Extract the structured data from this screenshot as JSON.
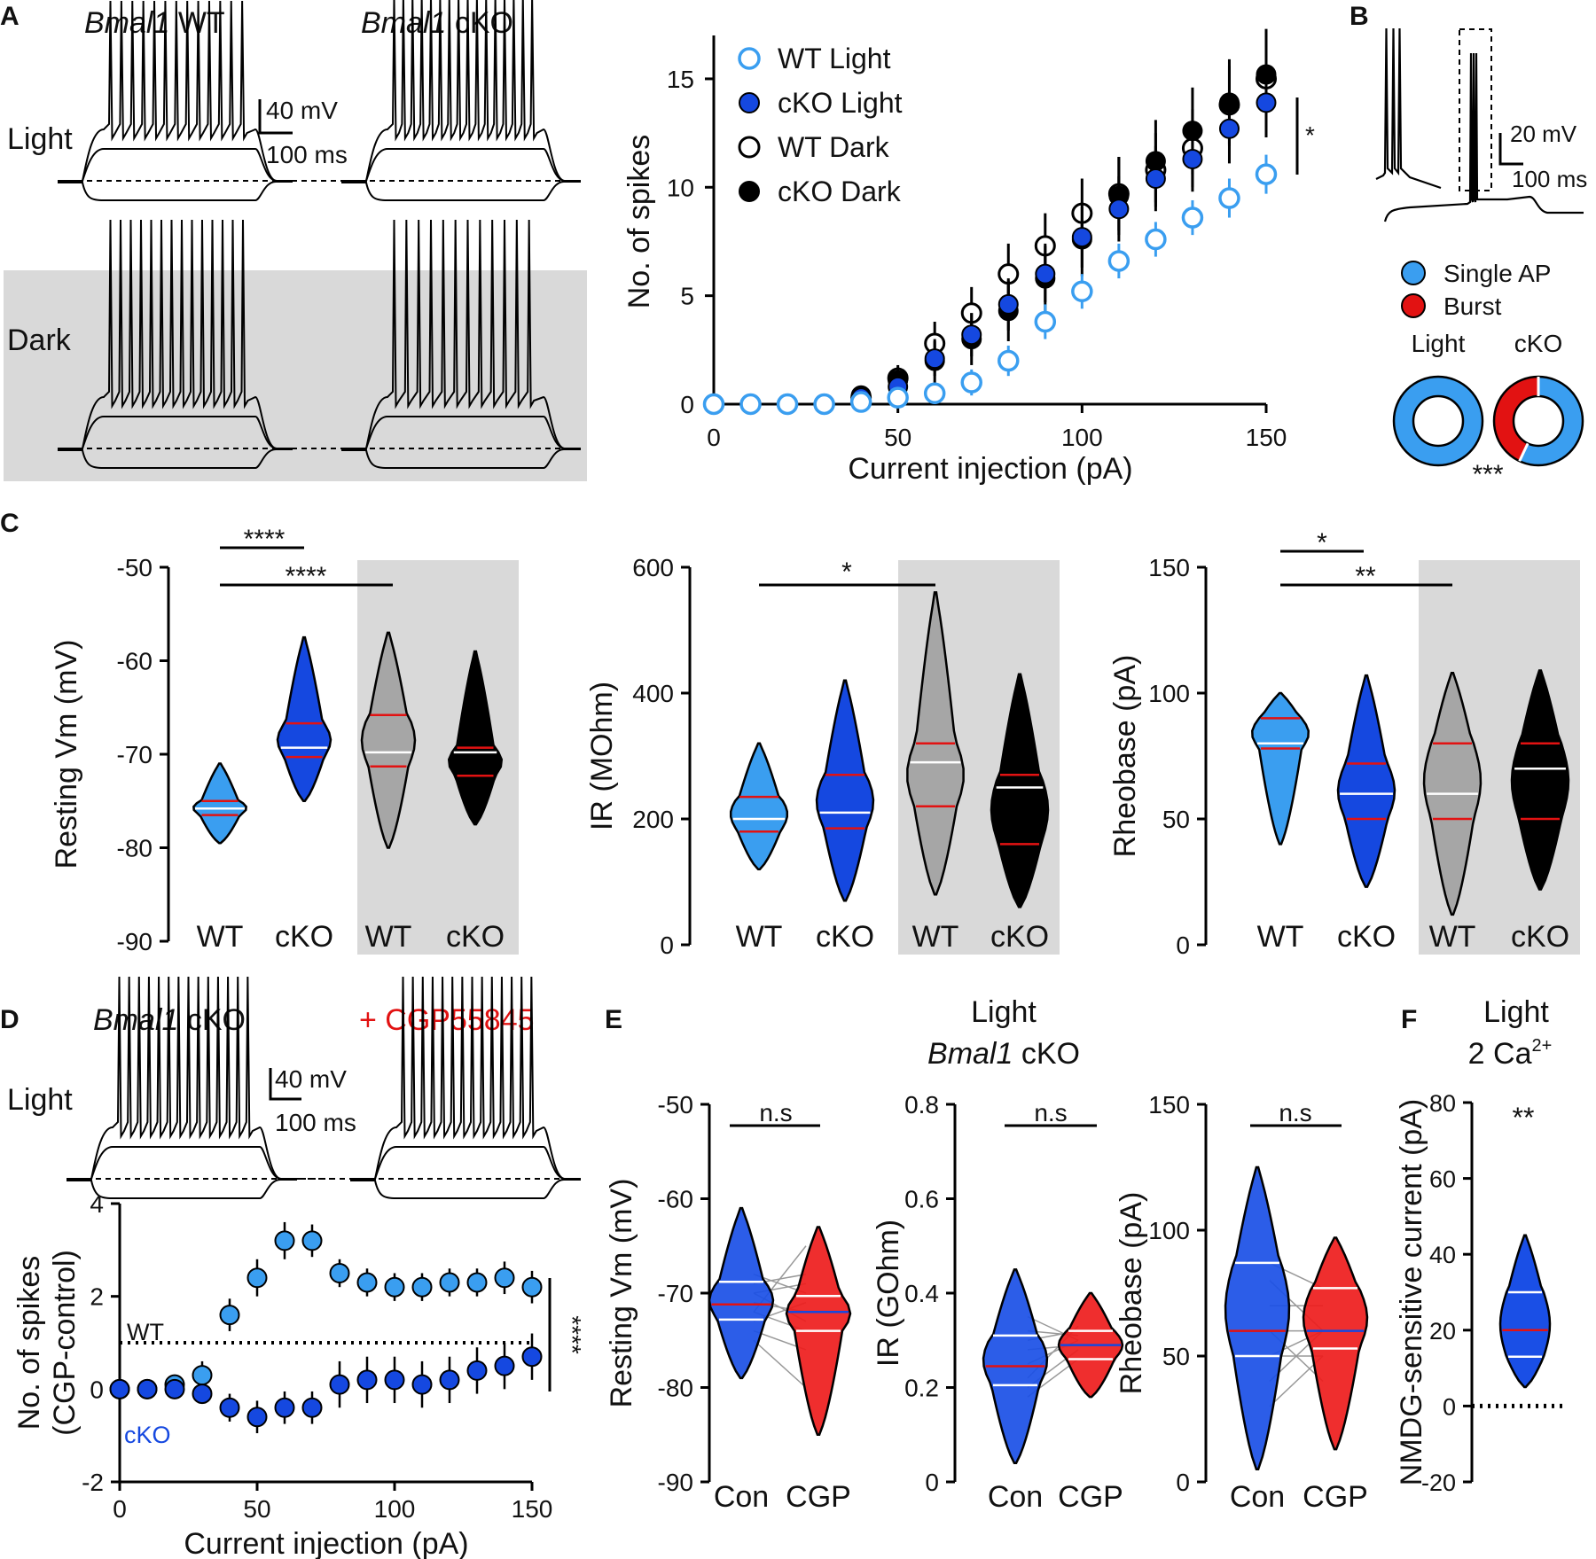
{
  "colors": {
    "wt_light": "#3a9ef0",
    "cko_light": "#1548e0",
    "black": "#000000",
    "grey": "#a6a6a6",
    "red": "#e21212",
    "bg_grey": "#d9d9d9",
    "con_blue": "#1a4fe6",
    "cgp_red": "#ee1c1c"
  },
  "panels": {
    "A": "A",
    "B": "B",
    "C": "C",
    "D": "D",
    "E": "E",
    "F": "F"
  },
  "panelA": {
    "wt_prefix": "Bmal1",
    "wt_suffix": " WT",
    "cko_prefix": "Bmal1",
    "cko_suffix": " cKO",
    "light_label": "Light",
    "dark_label": "Dark",
    "scale_mv": "40 mV",
    "scale_ms": "100 ms"
  },
  "panelB": {
    "scale_mv": "20 mV",
    "scale_ms": "100 ms",
    "legend": [
      "Single AP",
      "Burst"
    ],
    "donut_labels": [
      "Light",
      "cKO"
    ],
    "sig": "***"
  },
  "chart_data": [
    {
      "id": "A-spikes",
      "type": "scatter",
      "title": "",
      "xlabel": "Current injection (pA)",
      "ylabel": "No. of spikes",
      "xlim": [
        0,
        150
      ],
      "ylim": [
        0,
        17
      ],
      "xticks": [
        "0",
        "50",
        "100",
        "150"
      ],
      "yticks": [
        "0",
        "5",
        "10",
        "15"
      ],
      "x": [
        0,
        10,
        20,
        30,
        40,
        50,
        60,
        70,
        80,
        90,
        100,
        110,
        120,
        130,
        140,
        150
      ],
      "series": [
        {
          "name": "WT Light",
          "values": [
            0,
            0,
            0,
            0,
            0.1,
            0.3,
            0.5,
            1.0,
            2.0,
            3.8,
            5.2,
            6.6,
            7.6,
            8.6,
            9.5,
            10.6
          ],
          "err": [
            0,
            0,
            0,
            0,
            0.2,
            0.4,
            0.5,
            0.6,
            0.7,
            0.8,
            0.8,
            0.8,
            0.8,
            0.8,
            0.9,
            0.9
          ]
        },
        {
          "name": "cKO Light",
          "values": [
            0,
            0,
            0,
            0,
            0.3,
            0.8,
            2.1,
            3.2,
            4.6,
            6.0,
            7.7,
            9.0,
            10.4,
            11.3,
            12.7,
            13.9
          ],
          "err": [
            0,
            0,
            0,
            0,
            0.3,
            0.5,
            0.8,
            1.0,
            1.2,
            1.3,
            1.4,
            1.5,
            1.5,
            1.5,
            1.6,
            1.6
          ]
        },
        {
          "name": "WT Dark",
          "values": [
            0,
            0,
            0,
            0,
            0.3,
            1.2,
            2.8,
            4.2,
            6.0,
            7.3,
            8.8,
            9.7,
            10.8,
            11.8,
            13.8,
            15.0
          ],
          "err": [
            0,
            0,
            0,
            0,
            0.3,
            0.6,
            1.0,
            1.2,
            1.4,
            1.5,
            1.6,
            1.7,
            1.7,
            1.8,
            1.8,
            1.9
          ]
        },
        {
          "name": "cKO Dark",
          "values": [
            0,
            0,
            0,
            0,
            0.4,
            1.1,
            2.0,
            3.0,
            4.3,
            5.8,
            7.6,
            9.6,
            11.2,
            12.6,
            13.9,
            15.2
          ],
          "err": [
            0,
            0,
            0,
            0,
            0.3,
            0.6,
            1.0,
            1.2,
            1.4,
            1.6,
            1.7,
            1.8,
            1.9,
            2.0,
            2.0,
            2.1
          ]
        }
      ],
      "annotation": "*"
    },
    {
      "id": "B-donut",
      "type": "pie",
      "categories": [
        "Single AP",
        "Burst"
      ],
      "series": [
        {
          "name": "Light",
          "values": [
            100,
            0
          ]
        },
        {
          "name": "cKO",
          "values": [
            57,
            43
          ]
        }
      ]
    },
    {
      "id": "C-resting",
      "type": "violin",
      "ylabel": "Resting Vm (mV)",
      "ylim": [
        -90,
        -50
      ],
      "yticks": [
        "-50",
        "-60",
        "-70",
        "-80",
        "-90"
      ],
      "categories": [
        "WT",
        "cKO",
        "WT",
        "cKO"
      ],
      "groups": [
        {
          "median": -75.8,
          "q1": -76.5,
          "q3": -75.0,
          "min": -79.5,
          "max": -71.0
        },
        {
          "median": -69.3,
          "q1": -70.3,
          "q3": -66.7,
          "min": -75.0,
          "max": -57.5
        },
        {
          "median": -69.8,
          "q1": -71.3,
          "q3": -65.8,
          "min": -80.0,
          "max": -57.0
        },
        {
          "median": -69.8,
          "q1": -72.3,
          "q3": -69.3,
          "min": -77.5,
          "max": -59.0
        }
      ],
      "sig": [
        {
          "label": "****"
        },
        {
          "label": "****"
        }
      ]
    },
    {
      "id": "C-ir",
      "type": "violin",
      "ylabel": "IR (MOhm)",
      "ylim": [
        0,
        600
      ],
      "yticks": [
        "0",
        "200",
        "400",
        "600"
      ],
      "categories": [
        "WT",
        "cKO",
        "WT",
        "cKO"
      ],
      "groups": [
        {
          "median": 200,
          "q1": 180,
          "q3": 235,
          "min": 120,
          "max": 320
        },
        {
          "median": 210,
          "q1": 185,
          "q3": 270,
          "min": 70,
          "max": 420
        },
        {
          "median": 290,
          "q1": 220,
          "q3": 320,
          "min": 80,
          "max": 560
        },
        {
          "median": 250,
          "q1": 160,
          "q3": 270,
          "min": 60,
          "max": 430
        }
      ],
      "sig": [
        {
          "label": "*"
        }
      ]
    },
    {
      "id": "C-rheobase",
      "type": "violin",
      "ylabel": "Rheobase (pA)",
      "ylim": [
        0,
        150
      ],
      "yticks": [
        "0",
        "50",
        "100",
        "150"
      ],
      "categories": [
        "WT",
        "cKO",
        "WT",
        "cKO"
      ],
      "groups": [
        {
          "median": 80,
          "q1": 78,
          "q3": 90,
          "min": 40,
          "max": 100
        },
        {
          "median": 60,
          "q1": 50,
          "q3": 72,
          "min": 23,
          "max": 107
        },
        {
          "median": 60,
          "q1": 50,
          "q3": 80,
          "min": 12,
          "max": 108
        },
        {
          "median": 70,
          "q1": 50,
          "q3": 80,
          "min": 22,
          "max": 109
        }
      ],
      "sig": [
        {
          "label": "*"
        },
        {
          "label": "**"
        }
      ]
    },
    {
      "id": "D-spikes-diff",
      "type": "scatter",
      "xlabel": "Current injection (pA)",
      "ylabel": "No. of spikes (CGP-control)",
      "xlim": [
        0,
        150
      ],
      "ylim": [
        -2,
        4
      ],
      "xticks": [
        "0",
        "50",
        "100",
        "150"
      ],
      "yticks": [
        "4",
        "2",
        "0",
        "-2"
      ],
      "x": [
        0,
        10,
        20,
        30,
        40,
        50,
        60,
        70,
        80,
        90,
        100,
        110,
        120,
        130,
        140,
        150
      ],
      "series": [
        {
          "name": "WT",
          "values": [
            0,
            0,
            0.1,
            0.3,
            1.6,
            2.4,
            3.2,
            3.2,
            2.5,
            2.3,
            2.2,
            2.2,
            2.3,
            2.3,
            2.4,
            2.2
          ],
          "err": [
            0.1,
            0.1,
            0.15,
            0.3,
            0.35,
            0.4,
            0.4,
            0.35,
            0.3,
            0.3,
            0.3,
            0.3,
            0.3,
            0.3,
            0.35,
            0.35
          ]
        },
        {
          "name": "cKO",
          "values": [
            0,
            0,
            0,
            -0.1,
            -0.4,
            -0.6,
            -0.4,
            -0.4,
            0.1,
            0.2,
            0.2,
            0.1,
            0.2,
            0.4,
            0.5,
            0.7
          ],
          "err": [
            0.05,
            0.05,
            0.1,
            0.2,
            0.3,
            0.35,
            0.35,
            0.35,
            0.5,
            0.5,
            0.5,
            0.5,
            0.5,
            0.5,
            0.5,
            0.5
          ]
        }
      ],
      "annotation": "****"
    },
    {
      "id": "E-resting",
      "type": "violin",
      "ylabel": "Resting Vm (mV)",
      "ylim": [
        -90,
        -50
      ],
      "yticks": [
        "-50",
        "-60",
        "-70",
        "-80",
        "-90"
      ],
      "categories": [
        "Con",
        "CGP"
      ],
      "groups": [
        {
          "median": -71.2,
          "q1": -72.8,
          "q3": -68.8,
          "min": -79,
          "max": -61
        },
        {
          "median": -72.0,
          "q1": -74.0,
          "q3": -70.3,
          "min": -85,
          "max": -63
        }
      ],
      "pairs": [
        [
          -68,
          -70
        ],
        [
          -70,
          -69
        ],
        [
          -71,
          -72
        ],
        [
          -72,
          -74
        ],
        [
          -73,
          -71
        ],
        [
          -69,
          -68
        ],
        [
          -74,
          -76
        ],
        [
          -75,
          -80
        ],
        [
          -70,
          -73
        ],
        [
          -72,
          -65
        ]
      ],
      "sig": [
        {
          "label": "n.s"
        }
      ]
    },
    {
      "id": "E-ir",
      "type": "violin",
      "ylabel": "IR (GOhm)",
      "ylim": [
        0,
        0.8
      ],
      "yticks": [
        "0",
        "0.2",
        "0.4",
        "0.6",
        "0.8"
      ],
      "categories": [
        "Con",
        "CGP"
      ],
      "groups": [
        {
          "median": 0.245,
          "q1": 0.205,
          "q3": 0.31,
          "min": 0.04,
          "max": 0.45
        },
        {
          "median": 0.29,
          "q1": 0.26,
          "q3": 0.32,
          "min": 0.18,
          "max": 0.4
        }
      ],
      "pairs": [
        [
          0.3,
          0.32
        ],
        [
          0.2,
          0.28
        ],
        [
          0.25,
          0.3
        ],
        [
          0.35,
          0.3
        ],
        [
          0.18,
          0.26
        ],
        [
          0.22,
          0.33
        ],
        [
          0.28,
          0.29
        ],
        [
          0.32,
          0.31
        ]
      ],
      "sig": [
        {
          "label": "n.s"
        }
      ]
    },
    {
      "id": "E-rheobase",
      "type": "violin",
      "ylabel": "Rheobase (pA)",
      "ylim": [
        0,
        150
      ],
      "yticks": [
        "0",
        "50",
        "100",
        "150"
      ],
      "categories": [
        "Con",
        "CGP"
      ],
      "groups": [
        {
          "median": 60,
          "q1": 50,
          "q3": 87,
          "min": 5,
          "max": 125
        },
        {
          "median": 60,
          "q1": 53,
          "q3": 77,
          "min": 13,
          "max": 97
        }
      ],
      "pairs": [
        [
          87,
          77
        ],
        [
          60,
          60
        ],
        [
          50,
          60
        ],
        [
          50,
          50
        ],
        [
          40,
          60
        ],
        [
          30,
          50
        ],
        [
          70,
          70
        ],
        [
          80,
          60
        ],
        [
          60,
          40
        ]
      ],
      "sig": [
        {
          "label": "n.s"
        }
      ]
    },
    {
      "id": "F-nmdg",
      "type": "violin",
      "ylabel": "NMDG-sensitive current (pA)",
      "ylim": [
        -20,
        80
      ],
      "yticks": [
        "80",
        "60",
        "40",
        "20",
        "0",
        "-20"
      ],
      "categories": [
        "Light"
      ],
      "groups": [
        {
          "median": 20,
          "q1": 13,
          "q3": 30,
          "min": 5,
          "max": 45
        }
      ],
      "sig": [
        {
          "label": "**"
        }
      ]
    }
  ],
  "panelC_xlabels": [
    "WT",
    "cKO",
    "WT",
    "cKO"
  ],
  "panelD": {
    "title_prefix": "Bmal1",
    "title_suffix": " cKO",
    "drug": "+ CGP55845",
    "light_label": "Light",
    "scale_mv": "40 mV",
    "scale_ms": "100 ms",
    "wt_label": "WT",
    "cko_label": "cKO",
    "ylabel_line1": "No. of spikes",
    "ylabel_line2": "(CGP-control)"
  },
  "panelE": {
    "line1": "Light",
    "line2_prefix": "Bmal1",
    "line2_suffix": " cKO",
    "xlabels": [
      "Con",
      "CGP"
    ]
  },
  "panelF": {
    "line1": "Light",
    "line2": "2 Ca",
    "line2_sup": "2+"
  }
}
